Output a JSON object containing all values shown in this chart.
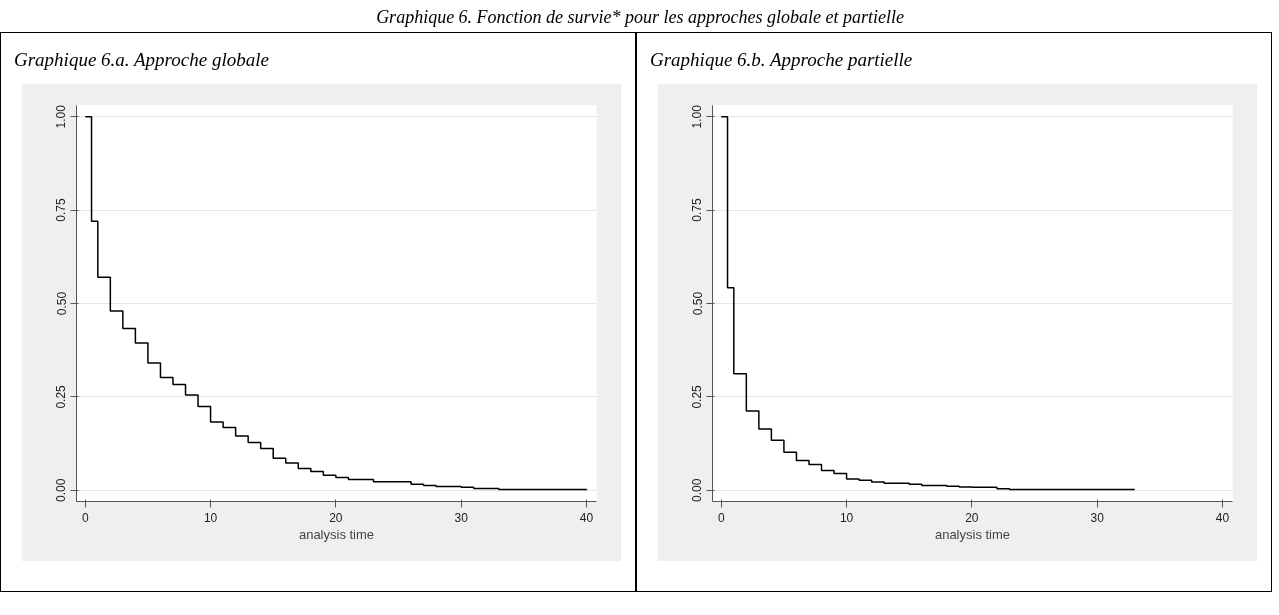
{
  "chart_data": [
    {
      "type": "step",
      "title": "Graphique 6.a. Approche globale",
      "annotations": [
        "Graphique 6. Fonction de survie* pour les approches globale et partielle"
      ],
      "xlabel": "analysis time",
      "x": [
        0,
        0.5,
        1,
        2,
        3,
        4,
        5,
        6,
        7,
        8,
        9,
        10,
        11,
        12,
        13,
        14,
        15,
        16,
        17,
        18,
        19,
        20,
        21,
        23,
        26,
        27,
        28,
        30,
        31,
        33,
        40
      ],
      "values": [
        1,
        0.72,
        0.57,
        0.48,
        0.433,
        0.394,
        0.341,
        0.302,
        0.283,
        0.255,
        0.224,
        0.183,
        0.168,
        0.145,
        0.128,
        0.112,
        0.086,
        0.073,
        0.058,
        0.05,
        0.04,
        0.034,
        0.029,
        0.023,
        0.016,
        0.013,
        0.01,
        0.008,
        0.005,
        0.002,
        0.001
      ],
      "color": "#000000",
      "xlim": [
        -0.7,
        40.8
      ],
      "ylim": [
        -0.03,
        1.03
      ],
      "xticks": [
        0,
        10,
        20,
        30,
        40
      ],
      "yticks": [
        {
          "value": 0,
          "label": "0.00"
        },
        {
          "value": 0.25,
          "label": "0.25"
        },
        {
          "value": 0.5,
          "label": "0.50"
        },
        {
          "value": 0.75,
          "label": "0.75"
        },
        {
          "value": 1,
          "label": "1.00"
        }
      ],
      "grid": "y"
    },
    {
      "type": "step",
      "title": "Graphique 6.b. Approche partielle",
      "xlabel": "analysis time",
      "x": [
        0,
        0.5,
        1,
        2,
        3,
        4,
        5,
        6,
        7,
        8,
        9,
        10,
        11,
        12,
        13,
        15,
        16,
        18,
        19,
        20,
        22,
        23,
        33
      ],
      "values": [
        1,
        0.542,
        0.312,
        0.212,
        0.164,
        0.134,
        0.102,
        0.08,
        0.069,
        0.053,
        0.045,
        0.03,
        0.027,
        0.022,
        0.019,
        0.016,
        0.013,
        0.011,
        0.009,
        0.008,
        0.004,
        0.002,
        0.002
      ],
      "color": "#000000",
      "xlim": [
        -0.7,
        40.8
      ],
      "ylim": [
        -0.03,
        1.03
      ],
      "xticks": [
        0,
        10,
        20,
        30,
        40
      ],
      "yticks": [
        {
          "value": 0,
          "label": "0.00"
        },
        {
          "value": 0.25,
          "label": "0.25"
        },
        {
          "value": 0.5,
          "label": "0.50"
        },
        {
          "value": 0.75,
          "label": "0.75"
        },
        {
          "value": 1,
          "label": "1.00"
        }
      ],
      "grid": "y"
    }
  ]
}
